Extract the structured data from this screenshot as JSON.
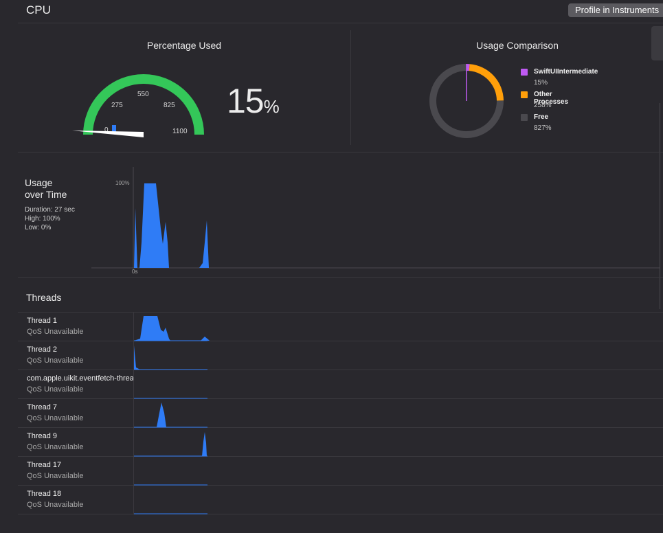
{
  "header": {
    "title": "CPU",
    "profile_button": "Profile in Instruments"
  },
  "gauge": {
    "title": "Percentage Used",
    "ticks": [
      "0",
      "275",
      "550",
      "825",
      "1100"
    ],
    "value_number": "15",
    "value_unit": "%",
    "value_fraction_of_max": 0.0136,
    "accent": "#34c759",
    "needle_color": "#ffffff"
  },
  "comparison": {
    "title": "Usage Comparison",
    "items": [
      {
        "name": "SwiftUIIntermediate",
        "value": "15%",
        "pct": 15,
        "color": "#bf5af2"
      },
      {
        "name": "Other Processes",
        "value": "258%",
        "pct": 258,
        "color": "#ff9f0a"
      },
      {
        "name": "Free",
        "value": "827%",
        "pct": 827,
        "color": "#4a494e"
      }
    ]
  },
  "usage_over_time": {
    "title_line1": "Usage",
    "title_line2": "over Time",
    "duration": "Duration: 27 sec",
    "high": "High: 100%",
    "low": "Low: 0%",
    "y_label": "100%",
    "x_label": "0s",
    "bar_color": "#2f7cf6"
  },
  "threads": {
    "title": "Threads",
    "rows": [
      {
        "name": "Thread 1",
        "qos": "QoS Unavailable"
      },
      {
        "name": "Thread 2",
        "qos": "QoS Unavailable"
      },
      {
        "name": "com.apple.uikit.eventfetch-thread",
        "qos": "QoS Unavailable"
      },
      {
        "name": "Thread 7",
        "qos": "QoS Unavailable"
      },
      {
        "name": "Thread 9",
        "qos": "QoS Unavailable"
      },
      {
        "name": "Thread 17",
        "qos": "QoS Unavailable"
      },
      {
        "name": "Thread 18",
        "qos": "QoS Unavailable"
      }
    ]
  }
}
